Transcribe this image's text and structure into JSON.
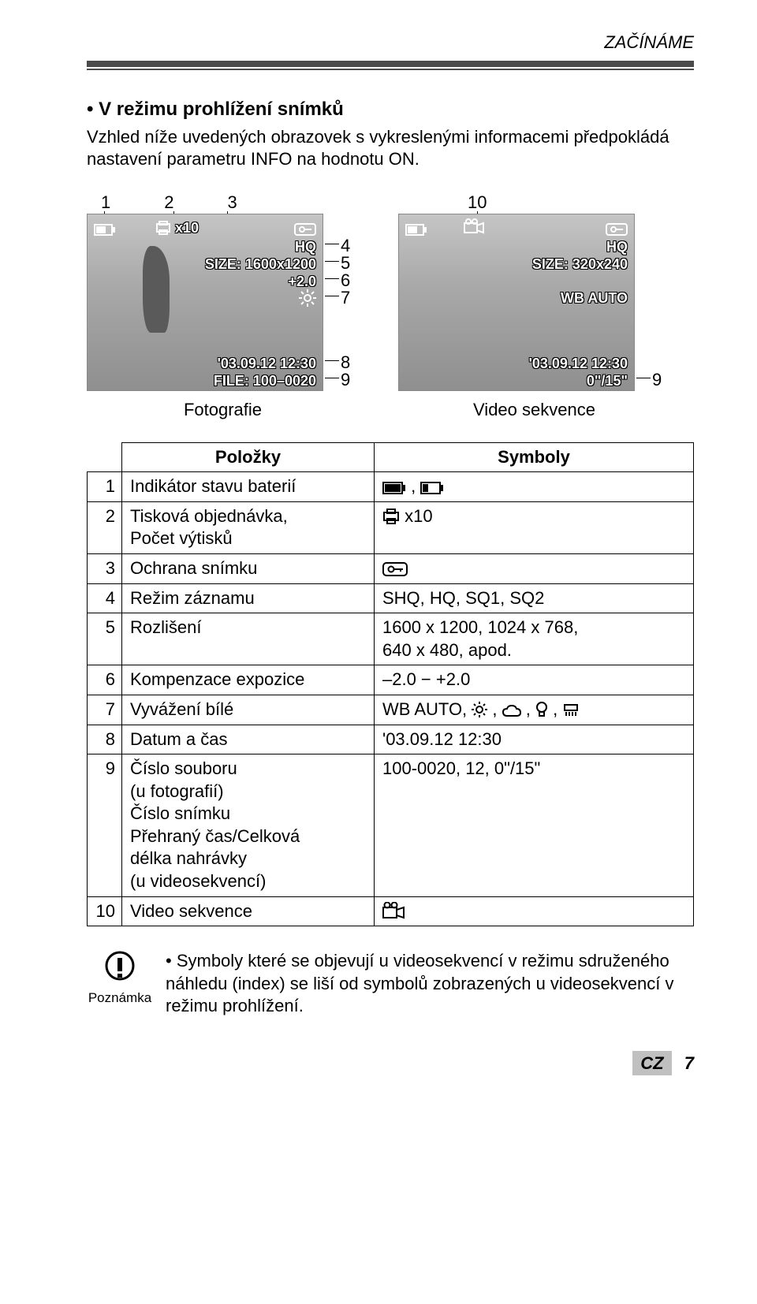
{
  "header": {
    "section": "ZAČÍNÁME"
  },
  "section": {
    "title": "• V režimu prohlížení snímků",
    "intro": "Vzhled níže uvedených obrazovek s vykreslenými informacemi předpokládá nastavení parametru INFO na hodnotu ON."
  },
  "photo_lcd": {
    "markers": [
      "1",
      "2",
      "3"
    ],
    "print_count": "x10",
    "record_mode": "HQ",
    "size_label": "SIZE: 1600x1200",
    "exp_comp": "+2.0",
    "datetime": "'03.09.12 12:30",
    "file": "FILE: 100–0020",
    "side": [
      "4",
      "5",
      "6",
      "7",
      "8",
      "9"
    ],
    "caption": "Fotografie"
  },
  "video_lcd": {
    "markers": [
      "10"
    ],
    "record_mode": "HQ",
    "size_label": "SIZE: 320x240",
    "wb": "WB AUTO",
    "datetime": "'03.09.12 12:30",
    "time": "0\"/15\"",
    "side": [
      "9"
    ],
    "caption": "Video sekvence"
  },
  "table": {
    "headers": [
      "Položky",
      "Symboly"
    ],
    "rows": [
      {
        "n": "1",
        "k": "Indikátor stavu baterií",
        "v_fmt": "batt_pair"
      },
      {
        "n": "2",
        "k": "Tisková objednávka,\nPočet výtisků",
        "v_fmt": "print_x10",
        "v": "x10"
      },
      {
        "n": "3",
        "k": "Ochrana snímku",
        "v_fmt": "key"
      },
      {
        "n": "4",
        "k": "Režim záznamu",
        "v": "SHQ, HQ, SQ1, SQ2"
      },
      {
        "n": "5",
        "k": "Rozlišení",
        "v": "1600 x 1200, 1024 x 768,\n640 x 480, apod."
      },
      {
        "n": "6",
        "k": "Kompenzace expozice",
        "v": "–2.0 − +2.0"
      },
      {
        "n": "7",
        "k": "Vyvážení bílé",
        "v_fmt": "wb_icons",
        "v": "WB AUTO, "
      },
      {
        "n": "8",
        "k": "Datum a čas",
        "v": "'03.09.12 12:30"
      },
      {
        "n": "9",
        "k": "Číslo souboru\n(u fotografií)\nČíslo snímku\nPřehraný čas/Celková\ndélka nahrávky\n(u videosekvencí)",
        "v": "100-0020, 12, 0\"/15\""
      },
      {
        "n": "10",
        "k": "Video sekvence",
        "v_fmt": "movie"
      }
    ]
  },
  "note": {
    "label": "Poznámka",
    "text": "• Symboly které se objevují u videosekvencí v režimu sdruženého náhledu (index) se liší od symbolů zobrazených u videosekvencí v režimu prohlížení."
  },
  "footer": {
    "lang": "CZ",
    "page": "7"
  }
}
